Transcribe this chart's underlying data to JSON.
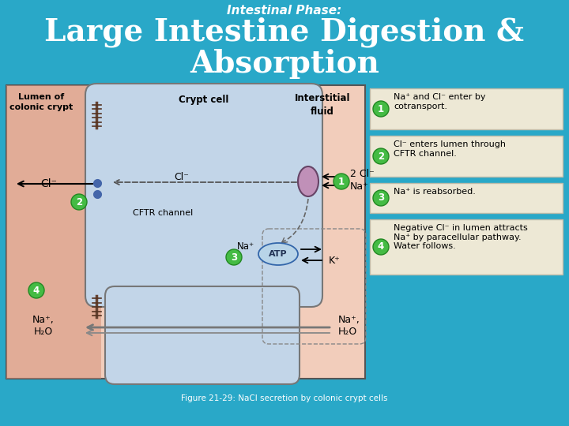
{
  "bg_color": "#29A8C8",
  "title_line1": "Intestinal Phase:",
  "title_line2": "Large Intestine Digestion &",
  "title_line3": "Absorption",
  "title_color": "white",
  "title_fontsize": 28,
  "caption": "Figure 21-29: NaCl secretion by colonic crypt cells",
  "caption_color": "white",
  "diagram_bg": "#F2CDBB",
  "cell_color": "#C2D5E8",
  "cell_border": "#777777",
  "step_labels": [
    "Na⁺ and Cl⁻ enter by\ncotransport.",
    "Cl⁻ enters lumen through\nCFTR channel.",
    "Na⁺ is reabsorbed.",
    "Negative Cl⁻ in lumen attracts\nNa⁺ by paracellular pathway.\nWater follows."
  ],
  "green_circle_color": "#44BB44",
  "atp_color": "#B8D4E8",
  "cotransporter_color": "#C090B8",
  "box_bg": "#EDE8D5",
  "box_border": "#BBBBAA",
  "lumen_reddish": "#D4917A"
}
